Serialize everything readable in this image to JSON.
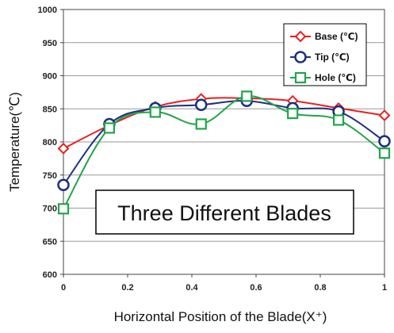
{
  "chart_data": {
    "type": "line",
    "xlabel": "Horizontal Position of the Blade(X⁺)",
    "ylabel": "Temperature(℃)",
    "xlim": [
      0,
      1
    ],
    "ylim": [
      600,
      1000
    ],
    "x_ticks": [
      0,
      0.2,
      0.4,
      0.6,
      0.8,
      1
    ],
    "x_tick_labels": [
      "0",
      "0.2",
      "0.4",
      "0.6",
      "0.8",
      "1"
    ],
    "y_ticks": [
      600,
      650,
      700,
      750,
      800,
      850,
      900,
      950,
      1000
    ],
    "y_tick_labels": [
      "600",
      "650",
      "700",
      "750",
      "800",
      "850",
      "900",
      "950",
      "1000"
    ],
    "grid": "horizontal",
    "legend_position": "top-right",
    "annotation": "Three Different Blades",
    "x": [
      0,
      0.143,
      0.286,
      0.429,
      0.571,
      0.714,
      0.857,
      1
    ],
    "series": [
      {
        "name": "Base (℃)",
        "color": "#e8201f",
        "marker": "diamond",
        "values": [
          790,
          825,
          853,
          865,
          866,
          862,
          851,
          840
        ]
      },
      {
        "name": "Tip (℃)",
        "color": "#1b2f82",
        "marker": "circle",
        "values": [
          735,
          827,
          851,
          856,
          862,
          851,
          846,
          801
        ]
      },
      {
        "name": "Hole (℃)",
        "color": "#20a54a",
        "marker": "square",
        "values": [
          699,
          821,
          845,
          827,
          869,
          843,
          833,
          783
        ]
      }
    ]
  }
}
